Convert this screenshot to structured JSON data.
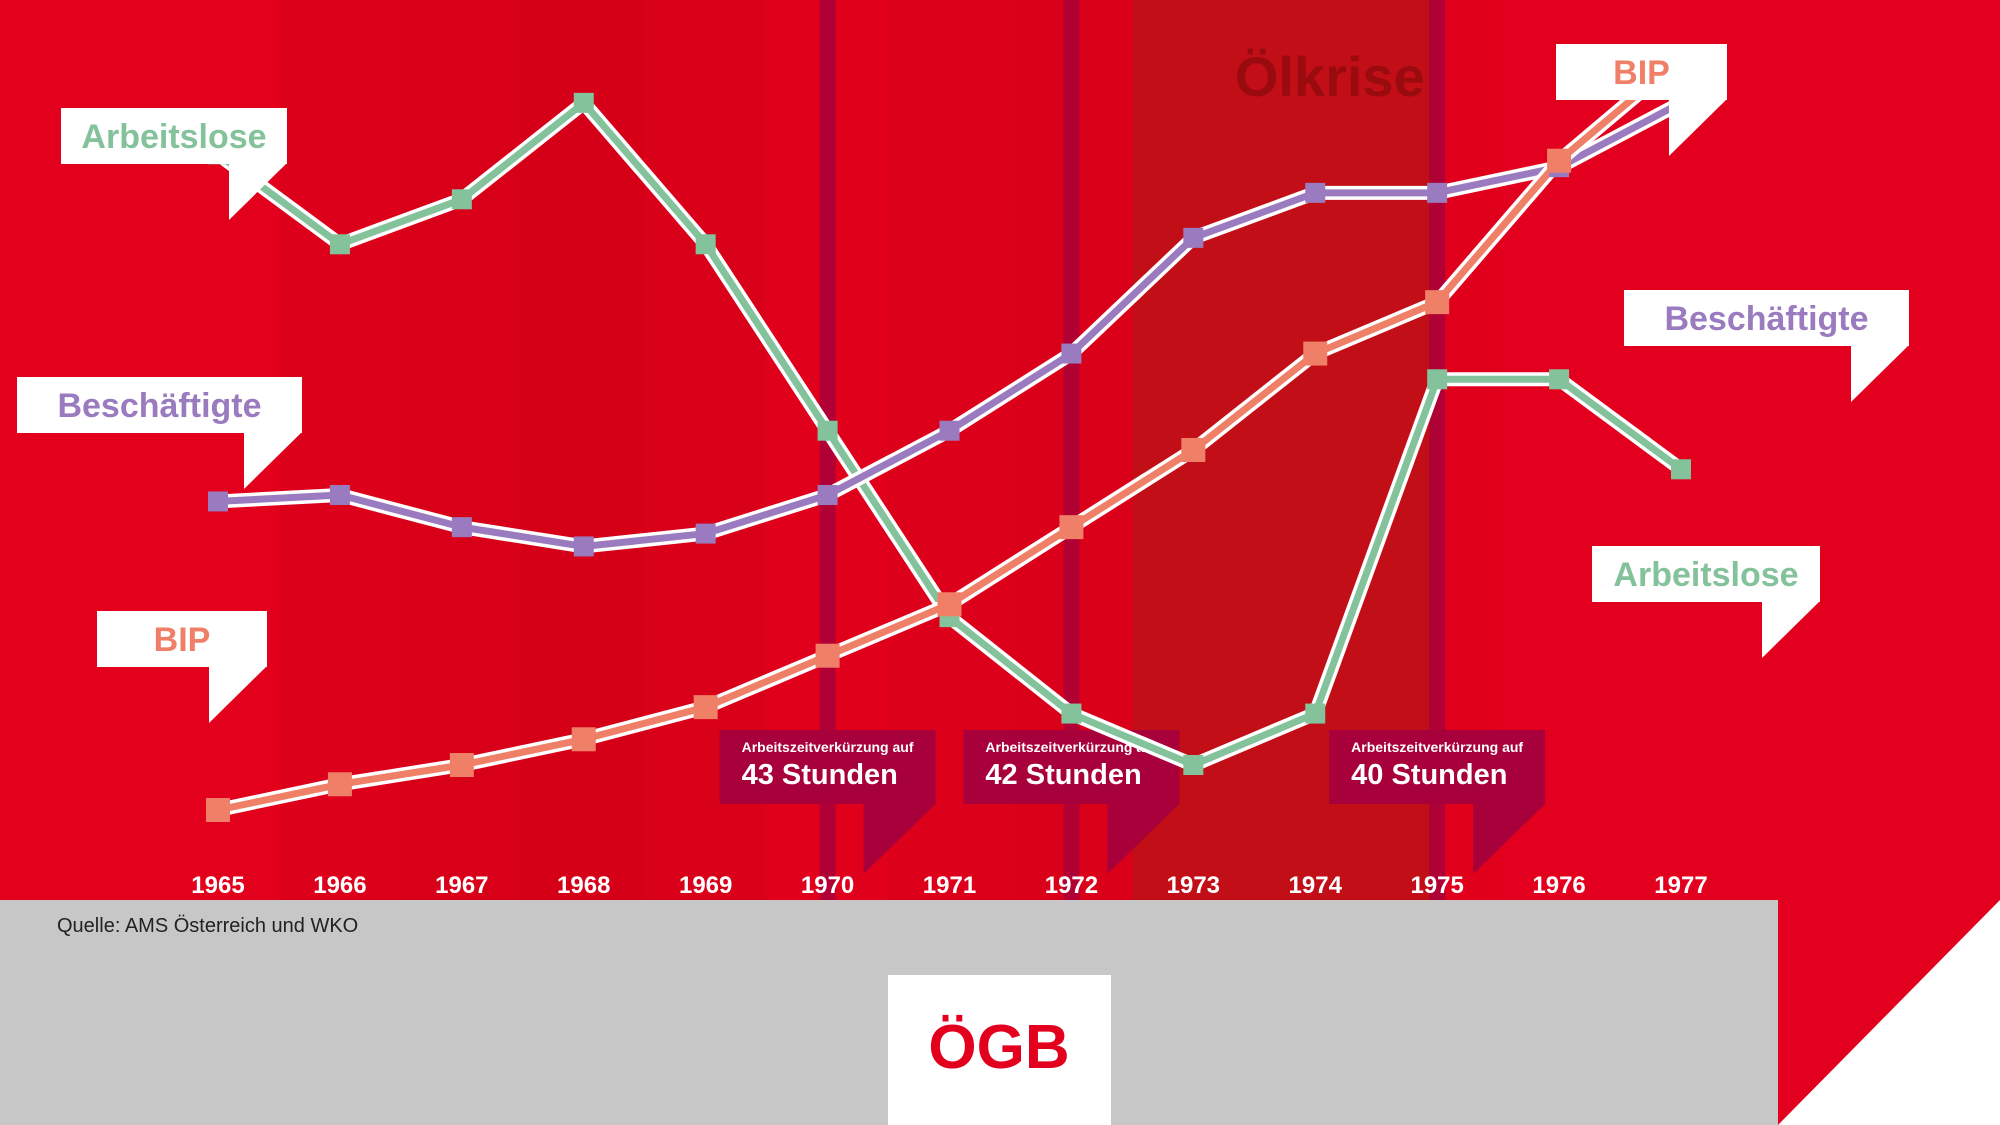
{
  "colors": {
    "red": "#e3001f",
    "dark_red": "#c20e16",
    "band": "#a8003a",
    "grey": "#c7c7c7",
    "white": "#ffffff",
    "arbeitslose": "#84c29b",
    "beschaeftigte": "#9b7bbf",
    "bip": "#ef7f66"
  },
  "chart_data": {
    "type": "line",
    "x": [
      "1965",
      "1966",
      "1967",
      "1968",
      "1969",
      "1970",
      "1971",
      "1972",
      "1973",
      "1974",
      "1975",
      "1976",
      "1977"
    ],
    "series": [
      {
        "name": "Arbeitslose",
        "values": [
          76,
          62,
          69,
          84,
          62,
          33,
          4,
          -11,
          -19,
          -11,
          41,
          41,
          27
        ]
      },
      {
        "name": "Beschäftigte",
        "values": [
          22,
          23,
          18,
          15,
          17,
          23,
          33,
          45,
          63,
          70,
          70,
          74,
          84
        ]
      },
      {
        "name": "BIP",
        "values": [
          -26,
          -22,
          -19,
          -15,
          -10,
          -2,
          6,
          18,
          30,
          45,
          53,
          75,
          91
        ]
      }
    ],
    "ylim": [
      -40,
      100
    ],
    "grid": false,
    "shaded_period": {
      "from": "1973",
      "to": "1975",
      "label": "Ölkrise"
    },
    "events": [
      {
        "year": "1970",
        "line1": "Arbeitszeitverkürzung auf",
        "line2": "43 Stunden"
      },
      {
        "year": "1972",
        "line1": "Arbeitszeitverkürzung auf",
        "line2": "42 Stunden"
      },
      {
        "year": "1975",
        "line1": "Arbeitszeitverkürzung auf",
        "line2": "40 Stunden"
      }
    ],
    "labels_left": [
      "Arbeitslose",
      "Beschäftigte",
      "BIP"
    ],
    "labels_right": [
      "BIP",
      "Beschäftigte",
      "Arbeitslose"
    ]
  },
  "footer": {
    "source": "Quelle: AMS Österreich und WKO",
    "logo_text": "ÖGB"
  }
}
